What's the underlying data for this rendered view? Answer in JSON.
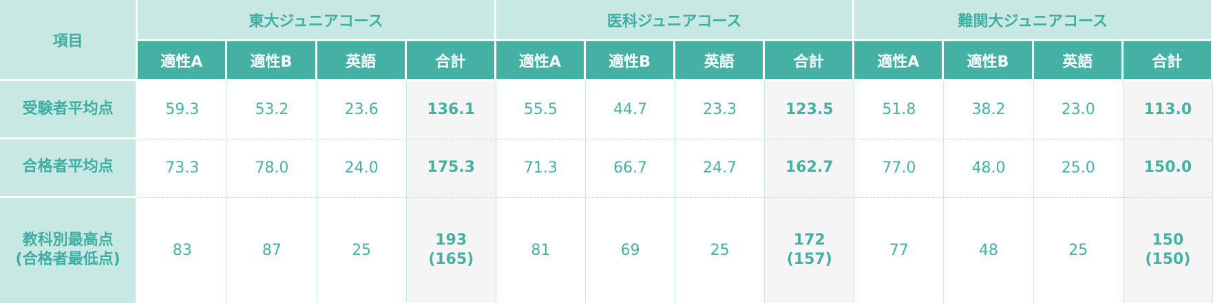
{
  "header": {
    "item_label": "項目",
    "courses": [
      {
        "name": "東大ジュニアコース"
      },
      {
        "name": "医科ジュニアコース"
      },
      {
        "name": "難関大ジュニアコース"
      }
    ],
    "subjects": [
      "適性A",
      "適性B",
      "英語",
      "合計"
    ]
  },
  "rows": [
    {
      "label": [
        "受験者平均点"
      ],
      "courses": [
        {
          "values": [
            "59.3",
            "53.2",
            "23.6"
          ],
          "total": [
            "136.1"
          ]
        },
        {
          "values": [
            "55.5",
            "44.7",
            "23.3"
          ],
          "total": [
            "123.5"
          ]
        },
        {
          "values": [
            "51.8",
            "38.2",
            "23.0"
          ],
          "total": [
            "113.0"
          ]
        }
      ]
    },
    {
      "label": [
        "合格者平均点"
      ],
      "courses": [
        {
          "values": [
            "73.3",
            "78.0",
            "24.0"
          ],
          "total": [
            "175.3"
          ]
        },
        {
          "values": [
            "71.3",
            "66.7",
            "24.7"
          ],
          "total": [
            "162.7"
          ]
        },
        {
          "values": [
            "77.0",
            "48.0",
            "25.0"
          ],
          "total": [
            "150.0"
          ]
        }
      ]
    },
    {
      "label": [
        "教科別最高点",
        "(合格者最低点)"
      ],
      "courses": [
        {
          "values": [
            "83",
            "87",
            "25"
          ],
          "total": [
            "193",
            "(165)"
          ]
        },
        {
          "values": [
            "81",
            "69",
            "25"
          ],
          "total": [
            "172",
            "(157)"
          ]
        },
        {
          "values": [
            "77",
            "48",
            "25"
          ],
          "total": [
            "150",
            "(150)"
          ]
        }
      ]
    }
  ]
}
